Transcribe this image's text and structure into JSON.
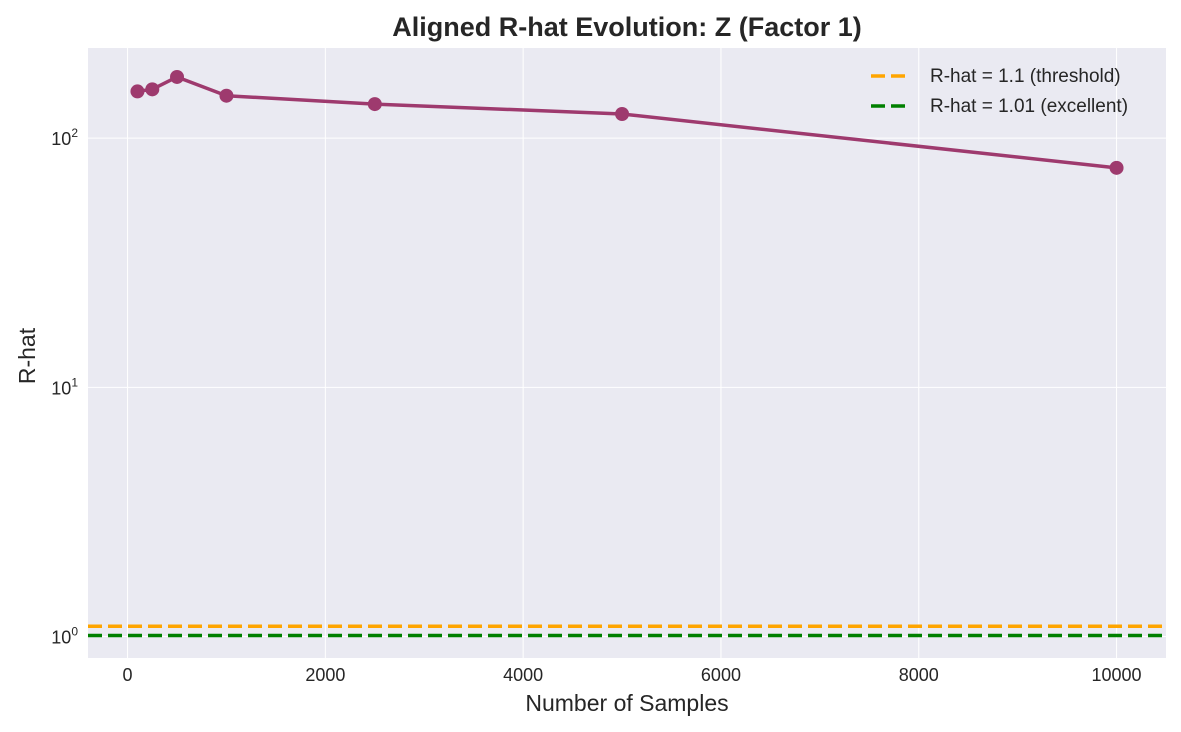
{
  "chart_data": {
    "type": "line",
    "title": "Aligned R-hat Evolution: Z (Factor 1)",
    "xlabel": "Number of Samples",
    "ylabel": "R-hat",
    "xlim": [
      -400,
      10500
    ],
    "ylim": [
      0.82,
      230
    ],
    "yscale": "log",
    "grid": true,
    "legend_position": "top-right",
    "x_ticks": [
      0,
      2000,
      4000,
      6000,
      8000,
      10000
    ],
    "y_ticks": [
      1,
      10,
      100
    ],
    "y_tick_labels": [
      {
        "base": "10",
        "exp": "0"
      },
      {
        "base": "10",
        "exp": "1"
      },
      {
        "base": "10",
        "exp": "2"
      }
    ],
    "series": [
      {
        "color": "#9e3a6e",
        "x": [
          100,
          250,
          500,
          1000,
          2500,
          5000,
          10000
        ],
        "y": [
          154,
          157,
          176,
          148,
          137,
          125,
          76
        ]
      }
    ],
    "reference_lines": [
      {
        "name": "R-hat = 1.1 (threshold)",
        "y": 1.1,
        "color": "#ffa500",
        "style": "dashed"
      },
      {
        "name": "R-hat = 1.01 (excellent)",
        "y": 1.01,
        "color": "#008000",
        "style": "dashed"
      }
    ]
  }
}
